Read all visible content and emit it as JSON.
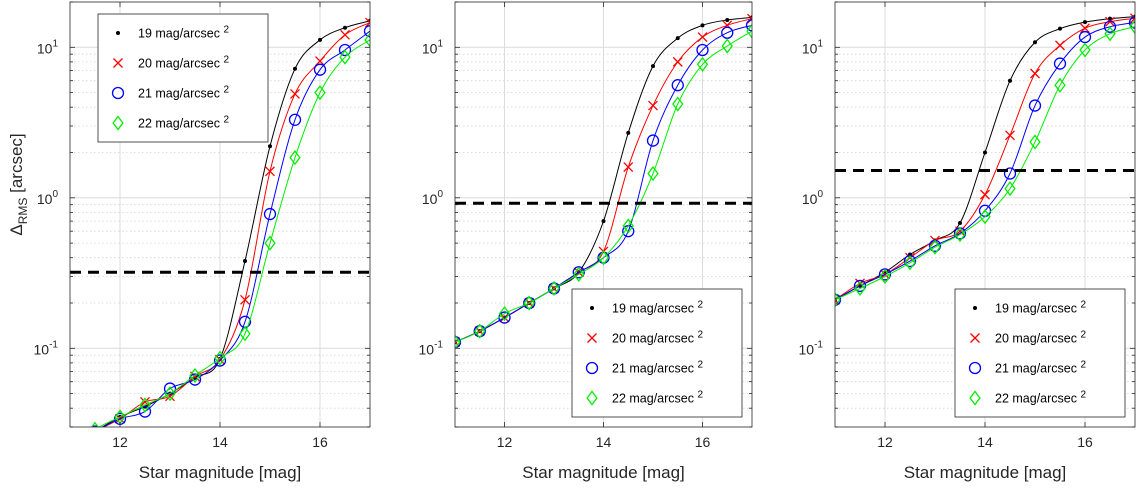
{
  "chart_data": [
    {
      "type": "line",
      "yscale": "log",
      "xlabel": "Star magnitude [mag]",
      "ylabel": "Δ_RMS [arcsec]",
      "ylabel_main": "Δ",
      "ylabel_sub": "RMS",
      "ylabel_unit": " [arcsec]",
      "xlim": [
        11,
        17
      ],
      "ylim": [
        0.03,
        20
      ],
      "xticks": [
        "12",
        "14",
        "16"
      ],
      "yticks": [
        {
          "base": "10",
          "exp": "1"
        },
        {
          "base": "10",
          "exp": "0"
        },
        {
          "base": "10",
          "exp": "-1"
        }
      ],
      "grid": true,
      "legend": "top-left",
      "threshold": 0.32,
      "x": [
        11,
        11.5,
        12,
        12.5,
        13,
        13.5,
        14,
        14.5,
        15,
        15.5,
        16,
        16.5,
        17
      ],
      "series": [
        {
          "name": "19 mag/arcsec 2",
          "marker": "dot",
          "color": "#000000",
          "values": [
            0.022,
            0.028,
            0.035,
            0.041,
            0.05,
            0.064,
            0.085,
            0.38,
            2.2,
            7.2,
            11.2,
            13.5,
            15.0
          ]
        },
        {
          "name": "20 mag/arcsec 2",
          "marker": "x",
          "color": "#ff0000",
          "values": [
            0.022,
            0.028,
            0.034,
            0.044,
            0.048,
            0.065,
            0.084,
            0.21,
            1.5,
            4.9,
            8.1,
            12.1,
            14.6
          ]
        },
        {
          "name": "21 mag/arcsec 2",
          "marker": "circle",
          "color": "#0000ff",
          "values": [
            0.022,
            0.028,
            0.034,
            0.038,
            0.054,
            0.062,
            0.083,
            0.15,
            0.78,
            3.3,
            7.1,
            9.6,
            12.8
          ]
        },
        {
          "name": "22 mag/arcsec 2",
          "marker": "diamond",
          "color": "#00ee00",
          "values": [
            0.022,
            0.029,
            0.035,
            0.042,
            0.05,
            0.066,
            0.086,
            0.125,
            0.5,
            1.85,
            5.0,
            8.6,
            11.2
          ]
        }
      ]
    },
    {
      "type": "line",
      "yscale": "log",
      "xlabel": "Star magnitude [mag]",
      "xlim": [
        11,
        17
      ],
      "ylim": [
        0.03,
        20
      ],
      "xticks": [
        "12",
        "14",
        "16"
      ],
      "yticks": [
        {
          "base": "10",
          "exp": "1"
        },
        {
          "base": "10",
          "exp": "0"
        },
        {
          "base": "10",
          "exp": "-1"
        }
      ],
      "grid": true,
      "legend": "bottom-right",
      "threshold": 0.92,
      "x": [
        11,
        11.5,
        12,
        12.5,
        13,
        13.5,
        14,
        14.5,
        15,
        15.5,
        16,
        16.5,
        17
      ],
      "series": [
        {
          "name": "19 mag/arcsec 2",
          "marker": "dot",
          "color": "#000000",
          "values": [
            0.11,
            0.13,
            0.16,
            0.2,
            0.25,
            0.32,
            0.7,
            2.7,
            7.5,
            11.5,
            14.0,
            15.2,
            15.8
          ]
        },
        {
          "name": "20 mag/arcsec 2",
          "marker": "x",
          "color": "#ff0000",
          "values": [
            0.11,
            0.13,
            0.16,
            0.2,
            0.25,
            0.32,
            0.44,
            1.6,
            4.1,
            8.0,
            11.7,
            14.0,
            15.5
          ]
        },
        {
          "name": "21 mag/arcsec 2",
          "marker": "circle",
          "color": "#0000ff",
          "values": [
            0.11,
            0.13,
            0.16,
            0.2,
            0.25,
            0.32,
            0.4,
            0.6,
            2.4,
            5.6,
            9.6,
            12.5,
            14.0
          ]
        },
        {
          "name": "22 mag/arcsec 2",
          "marker": "diamond",
          "color": "#00ee00",
          "values": [
            0.11,
            0.13,
            0.17,
            0.2,
            0.25,
            0.31,
            0.4,
            0.65,
            1.45,
            4.2,
            7.7,
            10.2,
            12.8
          ]
        }
      ]
    },
    {
      "type": "line",
      "yscale": "log",
      "xlabel": "Star magnitude [mag]",
      "xlim": [
        11,
        17
      ],
      "ylim": [
        0.03,
        20
      ],
      "xticks": [
        "12",
        "14",
        "16"
      ],
      "yticks": [
        {
          "base": "10",
          "exp": "1"
        },
        {
          "base": "10",
          "exp": "0"
        },
        {
          "base": "10",
          "exp": "-1"
        }
      ],
      "grid": true,
      "legend": "bottom-right",
      "threshold": 1.52,
      "x": [
        11,
        11.5,
        12,
        12.5,
        13,
        13.5,
        14,
        14.5,
        15,
        15.5,
        16,
        16.5,
        17
      ],
      "series": [
        {
          "name": "19 mag/arcsec 2",
          "marker": "dot",
          "color": "#000000",
          "values": [
            0.21,
            0.26,
            0.32,
            0.42,
            0.52,
            0.68,
            2.0,
            6.0,
            10.8,
            13.3,
            14.7,
            15.5,
            16.0
          ]
        },
        {
          "name": "20 mag/arcsec 2",
          "marker": "x",
          "color": "#ff0000",
          "values": [
            0.21,
            0.27,
            0.31,
            0.4,
            0.52,
            0.6,
            1.05,
            2.6,
            6.7,
            10.3,
            13.4,
            14.8,
            15.6
          ]
        },
        {
          "name": "21 mag/arcsec 2",
          "marker": "circle",
          "color": "#0000ff",
          "values": [
            0.21,
            0.26,
            0.31,
            0.38,
            0.48,
            0.58,
            0.82,
            1.45,
            4.1,
            7.8,
            11.7,
            13.7,
            14.6
          ]
        },
        {
          "name": "22 mag/arcsec 2",
          "marker": "diamond",
          "color": "#00ee00",
          "values": [
            0.21,
            0.25,
            0.3,
            0.37,
            0.47,
            0.57,
            0.75,
            1.15,
            2.35,
            5.6,
            9.6,
            12.3,
            13.7
          ]
        }
      ]
    }
  ]
}
